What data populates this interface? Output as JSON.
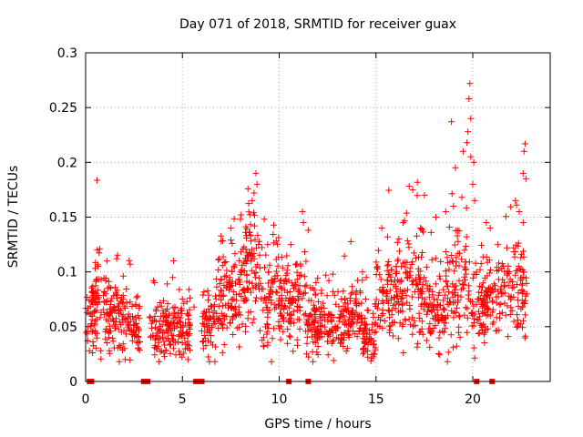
{
  "chart_data": {
    "type": "scatter",
    "title": "Day 071 of 2018, SRMTID for receiver guax",
    "xlabel": "GPS time / hours",
    "ylabel": "SRMTID / TECUs",
    "xlim": [
      0,
      24
    ],
    "ylim": [
      0,
      0.3
    ],
    "xticks": [
      0,
      5,
      10,
      15,
      20
    ],
    "xtick_labels": [
      "0",
      "5",
      "10",
      "15",
      "20"
    ],
    "yticks": [
      0,
      0.05,
      0.1,
      0.15,
      0.2,
      0.25,
      0.3
    ],
    "ytick_labels": [
      "0",
      "0.05",
      "0.1",
      "0.15",
      "0.2",
      "0.25",
      "0.3"
    ],
    "grid": true,
    "marker": "+",
    "color": "#ff0000",
    "series": [
      {
        "name": "SRMTID",
        "segments": [
          {
            "x0": 0.0,
            "x1": 0.6,
            "base": 0.05,
            "spread": 0.016,
            "n": 45
          },
          {
            "x0": 0.3,
            "x1": 1.0,
            "base": 0.072,
            "spread": 0.022,
            "n": 45
          },
          {
            "x0": 1.0,
            "x1": 2.0,
            "base": 0.058,
            "spread": 0.016,
            "n": 90
          },
          {
            "x0": 2.0,
            "x1": 2.8,
            "base": 0.052,
            "spread": 0.015,
            "n": 65
          },
          {
            "x0": 3.3,
            "x1": 5.4,
            "base": 0.046,
            "spread": 0.013,
            "n": 170
          },
          {
            "x0": 6.0,
            "x1": 6.7,
            "base": 0.052,
            "spread": 0.015,
            "n": 55
          },
          {
            "x0": 6.7,
            "x1": 8.0,
            "base": 0.078,
            "spread": 0.02,
            "n": 110
          },
          {
            "x0": 8.0,
            "x1": 9.0,
            "base": 0.094,
            "spread": 0.024,
            "n": 95
          },
          {
            "x0": 9.0,
            "x1": 10.2,
            "base": 0.07,
            "spread": 0.02,
            "n": 100
          },
          {
            "x0": 10.2,
            "x1": 11.4,
            "base": 0.068,
            "spread": 0.02,
            "n": 95
          },
          {
            "x0": 11.4,
            "x1": 13.0,
            "base": 0.052,
            "spread": 0.014,
            "n": 130
          },
          {
            "x0": 13.0,
            "x1": 14.3,
            "base": 0.058,
            "spread": 0.016,
            "n": 105
          },
          {
            "x0": 14.3,
            "x1": 15.0,
            "base": 0.042,
            "spread": 0.012,
            "n": 60
          },
          {
            "x0": 15.0,
            "x1": 16.2,
            "base": 0.075,
            "spread": 0.024,
            "n": 95
          },
          {
            "x0": 16.2,
            "x1": 17.6,
            "base": 0.078,
            "spread": 0.022,
            "n": 110
          },
          {
            "x0": 17.6,
            "x1": 18.6,
            "base": 0.066,
            "spread": 0.018,
            "n": 80
          },
          {
            "x0": 18.6,
            "x1": 19.8,
            "base": 0.082,
            "spread": 0.026,
            "n": 95
          },
          {
            "x0": 19.8,
            "x1": 20.6,
            "base": 0.07,
            "spread": 0.022,
            "n": 60
          },
          {
            "x0": 20.6,
            "x1": 21.6,
            "base": 0.075,
            "spread": 0.018,
            "n": 75
          },
          {
            "x0": 21.6,
            "x1": 22.8,
            "base": 0.08,
            "spread": 0.024,
            "n": 90
          }
        ],
        "outliers": [
          {
            "x": 0.6,
            "y": 0.12
          },
          {
            "x": 0.65,
            "y": 0.105
          },
          {
            "x": 1.1,
            "y": 0.11
          },
          {
            "x": 1.6,
            "y": 0.112
          },
          {
            "x": 2.3,
            "y": 0.107
          },
          {
            "x": 3.5,
            "y": 0.092
          },
          {
            "x": 4.5,
            "y": 0.095
          },
          {
            "x": 5.6,
            "y": 0.068
          },
          {
            "x": 6.9,
            "y": 0.112
          },
          {
            "x": 7.0,
            "y": 0.128
          },
          {
            "x": 7.5,
            "y": 0.14
          },
          {
            "x": 8.0,
            "y": 0.148
          },
          {
            "x": 8.3,
            "y": 0.133
          },
          {
            "x": 8.6,
            "y": 0.165
          },
          {
            "x": 8.7,
            "y": 0.172
          },
          {
            "x": 8.8,
            "y": 0.19
          },
          {
            "x": 8.85,
            "y": 0.18
          },
          {
            "x": 9.4,
            "y": 0.125
          },
          {
            "x": 10.6,
            "y": 0.125
          },
          {
            "x": 11.2,
            "y": 0.155
          },
          {
            "x": 11.25,
            "y": 0.145
          },
          {
            "x": 11.5,
            "y": 0.138
          },
          {
            "x": 14.3,
            "y": 0.1
          },
          {
            "x": 14.5,
            "y": 0.095
          },
          {
            "x": 15.3,
            "y": 0.14
          },
          {
            "x": 15.6,
            "y": 0.132
          },
          {
            "x": 16.4,
            "y": 0.145
          },
          {
            "x": 16.9,
            "y": 0.175
          },
          {
            "x": 17.3,
            "y": 0.14
          },
          {
            "x": 17.5,
            "y": 0.17
          },
          {
            "x": 18.1,
            "y": 0.15
          },
          {
            "x": 18.6,
            "y": 0.155
          },
          {
            "x": 19.0,
            "y": 0.16
          },
          {
            "x": 19.1,
            "y": 0.195
          },
          {
            "x": 18.9,
            "y": 0.237
          },
          {
            "x": 19.2,
            "y": 0.133
          },
          {
            "x": 19.5,
            "y": 0.21
          },
          {
            "x": 19.7,
            "y": 0.218
          },
          {
            "x": 19.8,
            "y": 0.258
          },
          {
            "x": 19.85,
            "y": 0.272
          },
          {
            "x": 19.9,
            "y": 0.24
          },
          {
            "x": 19.75,
            "y": 0.228
          },
          {
            "x": 19.9,
            "y": 0.205
          },
          {
            "x": 20.0,
            "y": 0.18
          },
          {
            "x": 20.1,
            "y": 0.165
          },
          {
            "x": 20.05,
            "y": 0.2
          },
          {
            "x": 20.7,
            "y": 0.145
          },
          {
            "x": 20.9,
            "y": 0.14
          },
          {
            "x": 21.3,
            "y": 0.125
          },
          {
            "x": 22.2,
            "y": 0.165
          },
          {
            "x": 22.4,
            "y": 0.155
          },
          {
            "x": 22.6,
            "y": 0.19
          },
          {
            "x": 22.65,
            "y": 0.21
          },
          {
            "x": 22.7,
            "y": 0.217
          },
          {
            "x": 22.75,
            "y": 0.185
          },
          {
            "x": 22.6,
            "y": 0.145
          }
        ]
      }
    ],
    "baseline_markers": {
      "y": 0,
      "x": [
        0.2,
        0.3,
        3.0,
        3.1,
        3.2,
        5.7,
        5.8,
        5.9,
        6.0,
        10.5,
        11.5,
        20.2,
        21.0
      ]
    }
  }
}
